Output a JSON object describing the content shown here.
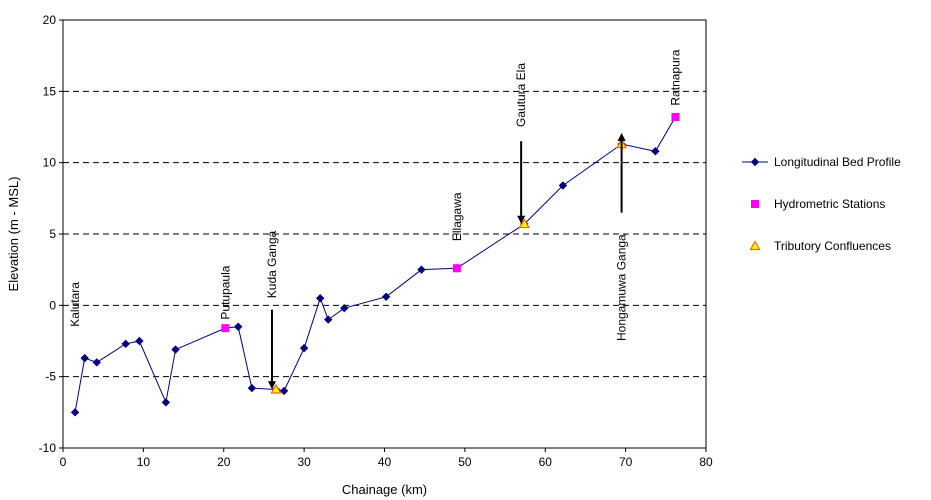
{
  "chart_data": {
    "type": "line",
    "xlabel": "Chainage (km)",
    "ylabel": "Elevation (m - MSL)",
    "xlim": [
      0,
      80
    ],
    "ylim": [
      -10,
      20
    ],
    "x_ticks": [
      "0",
      "10",
      "20",
      "30",
      "40",
      "50",
      "60",
      "70",
      "80"
    ],
    "y_ticks": [
      "-10",
      "-5",
      "0",
      "5",
      "10",
      "15",
      "20"
    ],
    "grid": "horizontal dashed",
    "legend_placement": "right",
    "series": [
      {
        "name": "Longitudinal Bed Profile",
        "marker": "diamond",
        "color": "#000080",
        "points": [
          {
            "x": 1.5,
            "y": -7.5
          },
          {
            "x": 2.7,
            "y": -3.7
          },
          {
            "x": 4.2,
            "y": -4.0
          },
          {
            "x": 7.8,
            "y": -2.7
          },
          {
            "x": 9.5,
            "y": -2.5
          },
          {
            "x": 12.8,
            "y": -6.8
          },
          {
            "x": 14.0,
            "y": -3.1
          },
          {
            "x": 20.2,
            "y": -1.6
          },
          {
            "x": 21.8,
            "y": -1.5
          },
          {
            "x": 23.5,
            "y": -5.8
          },
          {
            "x": 26.5,
            "y": -5.9
          },
          {
            "x": 27.5,
            "y": -6.0
          },
          {
            "x": 30.0,
            "y": -3.0
          },
          {
            "x": 32.0,
            "y": 0.5
          },
          {
            "x": 33.0,
            "y": -1.0
          },
          {
            "x": 35.0,
            "y": -0.2
          },
          {
            "x": 40.2,
            "y": 0.6
          },
          {
            "x": 44.6,
            "y": 2.5
          },
          {
            "x": 49.0,
            "y": 2.6
          },
          {
            "x": 57.4,
            "y": 5.7
          },
          {
            "x": 62.2,
            "y": 8.4
          },
          {
            "x": 69.5,
            "y": 11.3
          },
          {
            "x": 73.7,
            "y": 10.8
          },
          {
            "x": 76.2,
            "y": 13.2
          }
        ]
      },
      {
        "name": "Hydrometric Stations",
        "marker": "square",
        "color": "#ff00ff",
        "points": [
          {
            "x": 20.2,
            "y": -1.6
          },
          {
            "x": 49.0,
            "y": 2.6
          },
          {
            "x": 76.2,
            "y": 13.2
          }
        ]
      },
      {
        "name": "Tributory Confluences",
        "marker": "triangle",
        "color": "#ff6600",
        "fill": "#ffff00",
        "points": [
          {
            "x": 26.5,
            "y": -5.9
          },
          {
            "x": 57.4,
            "y": 5.7
          },
          {
            "x": 69.5,
            "y": 11.3
          }
        ]
      }
    ],
    "annotations": [
      {
        "text": "Kalutara",
        "x": 1.5,
        "y": -1.5,
        "arrow": null
      },
      {
        "text": "Putupaula",
        "x": 20.2,
        "y": -1.0,
        "arrow": null
      },
      {
        "text": "Kuda Ganga",
        "x": 26.0,
        "y": 0.5,
        "arrow": {
          "from": -0.3,
          "to": -5.6
        }
      },
      {
        "text": "Ellagawa",
        "x": 49.0,
        "y": 4.5,
        "arrow": null
      },
      {
        "text": "Gautura Ela",
        "x": 57.0,
        "y": 12.5,
        "arrow": {
          "from": 11.5,
          "to": 6.0
        }
      },
      {
        "text": "Hongamuwa Ganga",
        "x": 69.5,
        "y": -2.5,
        "arrow": {
          "from": 6.5,
          "to": 11.8
        }
      },
      {
        "text": "Ratnapura",
        "x": 76.2,
        "y": 14.0,
        "arrow": null
      }
    ]
  }
}
